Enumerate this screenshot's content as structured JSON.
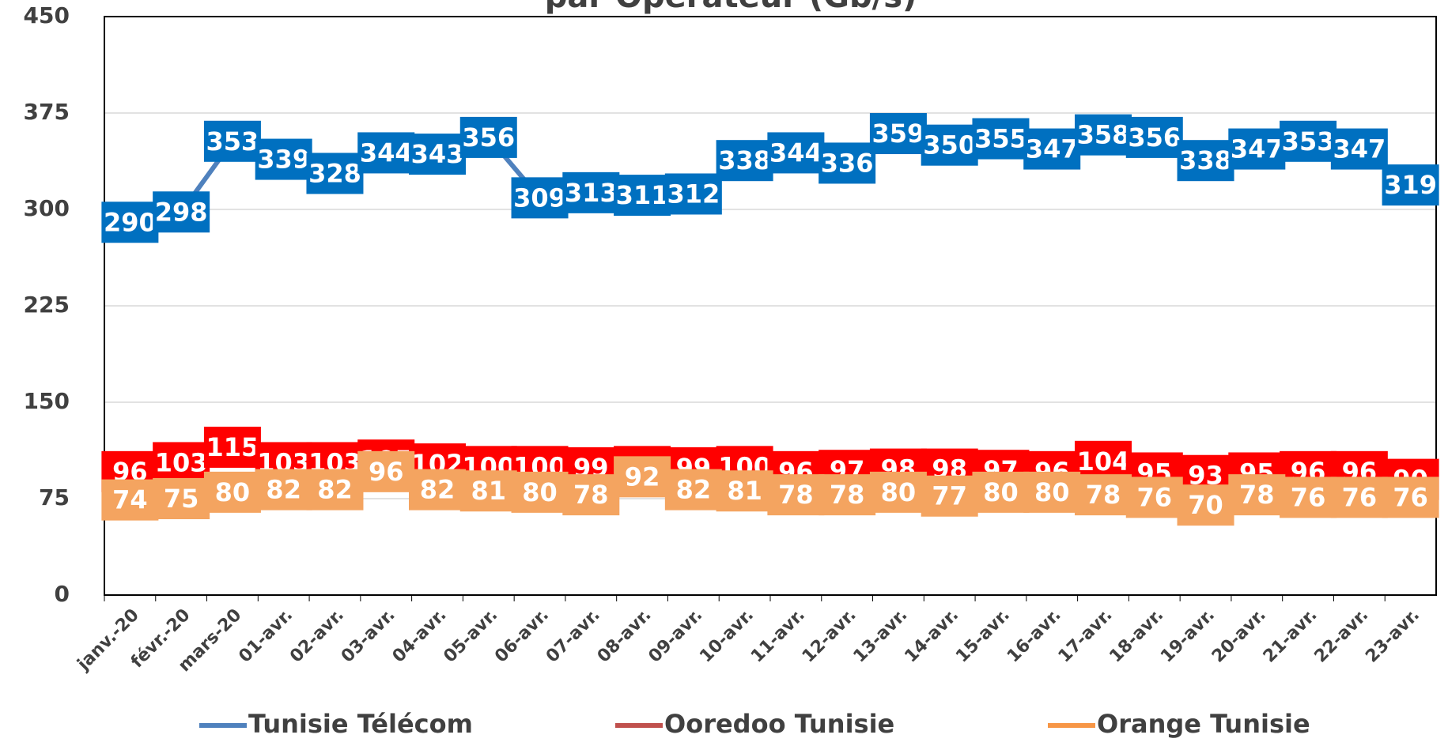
{
  "chart_data": {
    "type": "line",
    "title": "par Opérateur (Gb/s)",
    "categories": [
      "janv.-20",
      "févr.-20",
      "mars-20",
      "01-avr.",
      "02-avr.",
      "03-avr.",
      "04-avr.",
      "05-avr.",
      "06-avr.",
      "07-avr.",
      "08-avr.",
      "09-avr.",
      "10-avr.",
      "11-avr.",
      "12-avr.",
      "13-avr.",
      "14-avr.",
      "15-avr.",
      "16-avr.",
      "17-avr.",
      "18-avr.",
      "19-avr.",
      "20-avr.",
      "21-avr.",
      "22-avr.",
      "23-avr."
    ],
    "series": [
      {
        "name": "Tunisie Télécom",
        "color": "#4f81bd",
        "label_color": "#0070c0",
        "values": [
          290,
          298,
          353,
          339,
          328,
          344,
          343,
          356,
          309,
          313,
          311,
          312,
          338,
          344,
          336,
          359,
          350,
          355,
          347,
          358,
          356,
          338,
          347,
          353,
          347,
          319
        ]
      },
      {
        "name": "Ooredoo Tunisie",
        "color": "#c0504d",
        "label_color": "#ff0000",
        "values": [
          96,
          103,
          115,
          103,
          103,
          105,
          102,
          100,
          100,
          99,
          100,
          99,
          100,
          96,
          97,
          98,
          98,
          97,
          96,
          104,
          95,
          93,
          95,
          96,
          96,
          90
        ]
      },
      {
        "name": "Orange Tunisie",
        "color": "#f79646",
        "label_color": "#f4a460",
        "values": [
          74,
          75,
          80,
          82,
          82,
          96,
          82,
          81,
          80,
          78,
          92,
          82,
          81,
          78,
          78,
          80,
          77,
          80,
          80,
          78,
          76,
          70,
          78,
          76,
          76,
          76
        ]
      }
    ],
    "ylim": [
      0,
      450
    ],
    "yticks": [
      0,
      75,
      150,
      225,
      300,
      375,
      450
    ],
    "grid": true,
    "legend": "bottom"
  }
}
